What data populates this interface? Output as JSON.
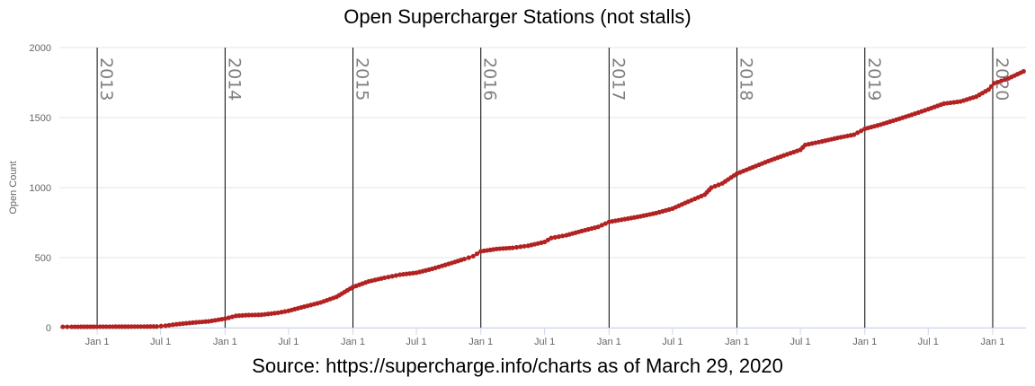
{
  "chart_data": {
    "type": "line",
    "title": "Open Supercharger Stations (not stalls)",
    "source": "Source: https://supercharge.info/charts as of March 29, 2020",
    "ylabel": "Open Count",
    "xlabel": "",
    "ylim": [
      0,
      2000
    ],
    "y_ticks": [
      0,
      500,
      1000,
      1500,
      2000
    ],
    "xlim": [
      "2012-09-15",
      "2020-04-05"
    ],
    "x_ticks": [
      {
        "date": "2013-01-01",
        "label": "Jan 1"
      },
      {
        "date": "2013-07-01",
        "label": "Jul 1"
      },
      {
        "date": "2014-01-01",
        "label": "Jan 1"
      },
      {
        "date": "2014-07-01",
        "label": "Jul 1"
      },
      {
        "date": "2015-01-01",
        "label": "Jan 1"
      },
      {
        "date": "2015-07-01",
        "label": "Jul 1"
      },
      {
        "date": "2016-01-01",
        "label": "Jan 1"
      },
      {
        "date": "2016-07-01",
        "label": "Jul 1"
      },
      {
        "date": "2017-01-01",
        "label": "Jan 1"
      },
      {
        "date": "2017-07-01",
        "label": "Jul 1"
      },
      {
        "date": "2018-01-01",
        "label": "Jan 1"
      },
      {
        "date": "2018-07-01",
        "label": "Jul 1"
      },
      {
        "date": "2019-01-01",
        "label": "Jan 1"
      },
      {
        "date": "2019-07-01",
        "label": "Jul 1"
      },
      {
        "date": "2020-01-01",
        "label": "Jan 1"
      }
    ],
    "year_markers": [
      {
        "date": "2013-01-01",
        "label": "2013"
      },
      {
        "date": "2014-01-01",
        "label": "2014"
      },
      {
        "date": "2015-01-01",
        "label": "2015"
      },
      {
        "date": "2016-01-01",
        "label": "2016"
      },
      {
        "date": "2017-01-01",
        "label": "2017"
      },
      {
        "date": "2018-01-01",
        "label": "2018"
      },
      {
        "date": "2019-01-01",
        "label": "2019"
      },
      {
        "date": "2020-01-01",
        "label": "2020"
      }
    ],
    "grid": true,
    "series": [
      {
        "color": "#b22222",
        "points": [
          [
            "2012-09-25",
            6
          ],
          [
            "2012-10-20",
            6
          ],
          [
            "2013-06-20",
            8
          ],
          [
            "2013-07-15",
            14
          ],
          [
            "2013-08-15",
            24
          ],
          [
            "2013-10-01",
            36
          ],
          [
            "2013-11-15",
            45
          ],
          [
            "2014-01-01",
            64
          ],
          [
            "2014-02-01",
            84
          ],
          [
            "2014-03-01",
            89
          ],
          [
            "2014-04-15",
            92
          ],
          [
            "2014-06-01",
            106
          ],
          [
            "2014-07-01",
            120
          ],
          [
            "2014-08-15",
            150
          ],
          [
            "2014-10-01",
            180
          ],
          [
            "2014-11-15",
            220
          ],
          [
            "2015-01-01",
            290
          ],
          [
            "2015-02-15",
            330
          ],
          [
            "2015-04-01",
            356
          ],
          [
            "2015-05-15",
            378
          ],
          [
            "2015-07-01",
            392
          ],
          [
            "2015-08-15",
            420
          ],
          [
            "2015-10-01",
            455
          ],
          [
            "2015-11-15",
            490
          ],
          [
            "2015-12-10",
            510
          ],
          [
            "2016-01-01",
            545
          ],
          [
            "2016-02-15",
            562
          ],
          [
            "2016-04-01",
            570
          ],
          [
            "2016-05-15",
            585
          ],
          [
            "2016-07-01",
            612
          ],
          [
            "2016-07-20",
            640
          ],
          [
            "2016-09-01",
            660
          ],
          [
            "2016-10-15",
            690
          ],
          [
            "2016-12-01",
            720
          ],
          [
            "2017-01-01",
            755
          ],
          [
            "2017-02-15",
            775
          ],
          [
            "2017-04-01",
            795
          ],
          [
            "2017-05-15",
            818
          ],
          [
            "2017-07-01",
            850
          ],
          [
            "2017-08-15",
            900
          ],
          [
            "2017-10-01",
            950
          ],
          [
            "2017-10-20",
            1000
          ],
          [
            "2017-11-20",
            1030
          ],
          [
            "2018-01-01",
            1100
          ],
          [
            "2018-02-15",
            1145
          ],
          [
            "2018-04-01",
            1190
          ],
          [
            "2018-05-15",
            1230
          ],
          [
            "2018-07-01",
            1270
          ],
          [
            "2018-07-15",
            1305
          ],
          [
            "2018-09-01",
            1330
          ],
          [
            "2018-10-15",
            1355
          ],
          [
            "2018-12-01",
            1378
          ],
          [
            "2019-01-01",
            1420
          ],
          [
            "2019-02-15",
            1450
          ],
          [
            "2019-04-01",
            1485
          ],
          [
            "2019-05-15",
            1520
          ],
          [
            "2019-07-01",
            1560
          ],
          [
            "2019-08-15",
            1600
          ],
          [
            "2019-10-01",
            1615
          ],
          [
            "2019-11-15",
            1650
          ],
          [
            "2019-12-20",
            1700
          ],
          [
            "2020-01-05",
            1745
          ],
          [
            "2020-02-15",
            1780
          ],
          [
            "2020-03-29",
            1830
          ]
        ]
      }
    ]
  }
}
